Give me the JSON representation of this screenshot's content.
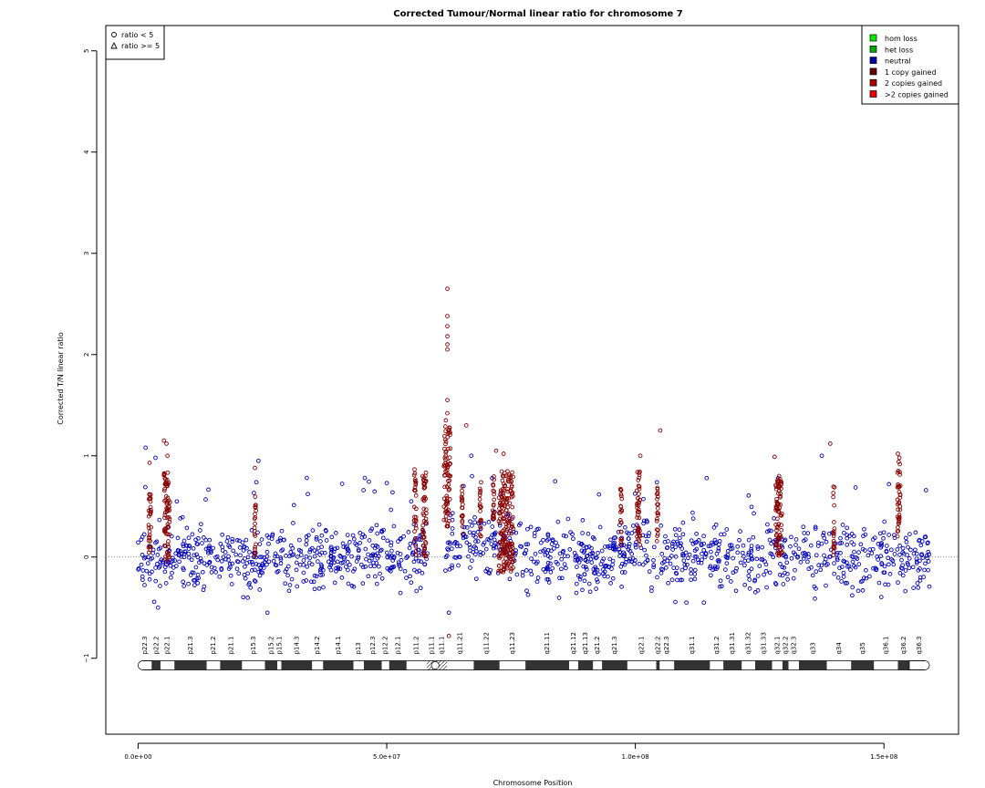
{
  "chart_data": {
    "type": "scatter",
    "title": "Corrected Tumour/Normal linear ratio for chromosome  7",
    "xlabel": "Chromosome Position",
    "ylabel": "Corrected T/N linear ratio",
    "xlim": [
      -6500000,
      165000000
    ],
    "ylim": [
      -1.75,
      5.25
    ],
    "x_ticks": [
      {
        "value": 0,
        "label": "0.0e+00"
      },
      {
        "value": 50000000,
        "label": "5.0e+07"
      },
      {
        "value": 100000000,
        "label": "1.0e+08"
      },
      {
        "value": 150000000,
        "label": "1.5e+08"
      }
    ],
    "y_ticks": [
      {
        "value": -1,
        "label": "−1"
      },
      {
        "value": 0,
        "label": "0"
      },
      {
        "value": 1,
        "label": "1"
      },
      {
        "value": 2,
        "label": "2"
      },
      {
        "value": 3,
        "label": "3"
      },
      {
        "value": 4,
        "label": "4"
      },
      {
        "value": 5,
        "label": "5"
      }
    ],
    "reference_line_y": 0,
    "shape_legend": {
      "placement": "top-left",
      "items": [
        {
          "symbol": "circle",
          "label": "ratio < 5"
        },
        {
          "symbol": "triangle",
          "label": "ratio >= 5"
        }
      ]
    },
    "state_legend": {
      "placement": "top-right",
      "items": [
        {
          "label": "hom loss",
          "color": "#00ee00"
        },
        {
          "label": "het loss",
          "color": "#00aa00"
        },
        {
          "label": "neutral",
          "color": "#0000aa"
        },
        {
          "label": "1 copy gained",
          "color": "#660000"
        },
        {
          "label": "2 copies gained",
          "color": "#aa0000"
        },
        {
          "label": ">2 copies gained",
          "color": "#ee0000"
        }
      ]
    },
    "series": [
      {
        "name": "neutral",
        "color": "#0000bb",
        "baseline_band": {
          "center": 0.0,
          "low": -0.45,
          "high": 0.55
        },
        "elevated_regions": [
          [
            62000000,
            77000000
          ],
          [
            98000000,
            103000000
          ]
        ],
        "points_per_mb": 9
      },
      {
        "name": "1 copy gained",
        "color": "#880000",
        "segments": [
          {
            "x": [
              2100000,
              2600000
            ],
            "y": [
              0.0,
              0.65
            ]
          },
          {
            "x": [
              5200000,
              6400000
            ],
            "y": [
              -0.05,
              0.85
            ]
          },
          {
            "x": [
              23400000,
              23700000
            ],
            "y": [
              0.0,
              0.6
            ]
          },
          {
            "x": [
              55500000,
              56000000
            ],
            "y": [
              0.0,
              0.9
            ]
          },
          {
            "x": [
              57200000,
              58000000
            ],
            "y": [
              0.0,
              0.85
            ]
          },
          {
            "x": [
              61500000,
              62800000
            ],
            "y": [
              0.3,
              1.3
            ]
          },
          {
            "x": [
              65000000,
              65300000
            ],
            "y": [
              0.2,
              0.7
            ]
          },
          {
            "x": [
              68700000,
              69000000
            ],
            "y": [
              0.2,
              0.75
            ]
          },
          {
            "x": [
              71300000,
              71600000
            ],
            "y": [
              0.25,
              0.8
            ]
          },
          {
            "x": [
              72500000,
              75500000
            ],
            "y": [
              -0.15,
              0.85
            ]
          },
          {
            "x": [
              97000000,
              97300000
            ],
            "y": [
              0.1,
              0.7
            ]
          },
          {
            "x": [
              100300000,
              101000000
            ],
            "y": [
              0.1,
              0.85
            ]
          },
          {
            "x": [
              104300000,
              104600000
            ],
            "y": [
              0.15,
              0.7
            ]
          },
          {
            "x": [
              128200000,
              129500000
            ],
            "y": [
              0.0,
              0.8
            ]
          },
          {
            "x": [
              139800000,
              140100000
            ],
            "y": [
              0.0,
              0.75
            ]
          },
          {
            "x": [
              152700000,
              153300000
            ],
            "y": [
              0.2,
              0.95
            ]
          }
        ],
        "outliers": [
          {
            "x": 62200000,
            "y": 2.65
          },
          {
            "x": 62200000,
            "y": 2.38
          },
          {
            "x": 62200000,
            "y": 2.28
          },
          {
            "x": 62200000,
            "y": 2.18
          },
          {
            "x": 62200000,
            "y": 2.1
          },
          {
            "x": 62200000,
            "y": 2.05
          },
          {
            "x": 62200000,
            "y": 1.55
          },
          {
            "x": 62200000,
            "y": 1.42
          },
          {
            "x": 61900000,
            "y": 1.35
          },
          {
            "x": 62400000,
            "y": 1.25
          },
          {
            "x": 5200000,
            "y": 1.15
          },
          {
            "x": 5700000,
            "y": 1.12
          },
          {
            "x": 5900000,
            "y": 1.0
          },
          {
            "x": 105000000,
            "y": 1.25
          },
          {
            "x": 66000000,
            "y": 1.3
          },
          {
            "x": 72000000,
            "y": 1.05
          },
          {
            "x": 73500000,
            "y": 1.02
          },
          {
            "x": 139200000,
            "y": 1.12
          },
          {
            "x": 128000000,
            "y": 0.99
          },
          {
            "x": 152800000,
            "y": 1.02
          },
          {
            "x": 153100000,
            "y": 0.98
          },
          {
            "x": 2300000,
            "y": 0.93
          },
          {
            "x": 23500000,
            "y": 0.88
          },
          {
            "x": 101000000,
            "y": 1.0
          },
          {
            "x": 62500000,
            "y": -0.78
          }
        ]
      }
    ],
    "neutral_outliers": [
      {
        "x": 1500000,
        "y": 1.08
      },
      {
        "x": 67000000,
        "y": 1.0
      },
      {
        "x": 137500000,
        "y": 1.0
      },
      {
        "x": 24200000,
        "y": 0.95
      },
      {
        "x": 3500000,
        "y": 0.98
      },
      {
        "x": 62500000,
        "y": -0.55
      },
      {
        "x": 26000000,
        "y": -0.55
      },
      {
        "x": 4000000,
        "y": -0.5
      }
    ],
    "ideogram": {
      "y": -1.07,
      "start": 0,
      "end": 159138663,
      "centromere": [
        58000000,
        61500000
      ],
      "bands": [
        {
          "name": "p22.3",
          "start": 0,
          "end": 2800000,
          "stain": "gneg"
        },
        {
          "name": "p22.2",
          "start": 2800000,
          "end": 4500000,
          "stain": "gpos25"
        },
        {
          "name": "p22.1",
          "start": 4500000,
          "end": 7300000,
          "stain": "gneg"
        },
        {
          "name": "p21.3",
          "start": 7300000,
          "end": 13800000,
          "stain": "gpos100"
        },
        {
          "name": "p21.2",
          "start": 13800000,
          "end": 16500000,
          "stain": "gneg"
        },
        {
          "name": "p21.1",
          "start": 16500000,
          "end": 20900000,
          "stain": "gpos100"
        },
        {
          "name": "p15.3",
          "start": 20900000,
          "end": 25500000,
          "stain": "gneg"
        },
        {
          "name": "p15.2",
          "start": 25500000,
          "end": 28000000,
          "stain": "gpos50"
        },
        {
          "name": "p15.1",
          "start": 28000000,
          "end": 28800000,
          "stain": "gneg"
        },
        {
          "name": "p14.3",
          "start": 28800000,
          "end": 35000000,
          "stain": "gpos75"
        },
        {
          "name": "p14.2",
          "start": 35000000,
          "end": 37200000,
          "stain": "gneg"
        },
        {
          "name": "p14.1",
          "start": 37200000,
          "end": 43300000,
          "stain": "gpos75"
        },
        {
          "name": "p13",
          "start": 43300000,
          "end": 45400000,
          "stain": "gneg"
        },
        {
          "name": "p12.3",
          "start": 45400000,
          "end": 49000000,
          "stain": "gpos75"
        },
        {
          "name": "p12.2",
          "start": 49000000,
          "end": 50500000,
          "stain": "gneg"
        },
        {
          "name": "p12.1",
          "start": 50500000,
          "end": 54000000,
          "stain": "gpos75"
        },
        {
          "name": "p11.2",
          "start": 54000000,
          "end": 58000000,
          "stain": "gneg"
        },
        {
          "name": "p11.1",
          "start": 58000000,
          "end": 60100000,
          "stain": "acen"
        },
        {
          "name": "q11.1",
          "start": 60100000,
          "end": 62100000,
          "stain": "acen"
        },
        {
          "name": "q11.21",
          "start": 62100000,
          "end": 67500000,
          "stain": "gneg"
        },
        {
          "name": "q11.22",
          "start": 67500000,
          "end": 72700000,
          "stain": "gpos50"
        },
        {
          "name": "q11.23",
          "start": 72700000,
          "end": 77900000,
          "stain": "gneg"
        },
        {
          "name": "q21.11",
          "start": 77900000,
          "end": 86700000,
          "stain": "gpos100"
        },
        {
          "name": "q21.12",
          "start": 86700000,
          "end": 88500000,
          "stain": "gneg"
        },
        {
          "name": "q21.13",
          "start": 88500000,
          "end": 91500000,
          "stain": "gpos75"
        },
        {
          "name": "q21.2",
          "start": 91500000,
          "end": 93300000,
          "stain": "gneg"
        },
        {
          "name": "q21.3",
          "start": 93300000,
          "end": 98400000,
          "stain": "gpos75"
        },
        {
          "name": "q22.1",
          "start": 98400000,
          "end": 104200000,
          "stain": "gneg"
        },
        {
          "name": "q22.2",
          "start": 104200000,
          "end": 104900000,
          "stain": "gpos50"
        },
        {
          "name": "q22.3",
          "start": 104900000,
          "end": 107800000,
          "stain": "gneg"
        },
        {
          "name": "q31.1",
          "start": 107800000,
          "end": 115000000,
          "stain": "gpos75"
        },
        {
          "name": "q31.2",
          "start": 115000000,
          "end": 117700000,
          "stain": "gneg"
        },
        {
          "name": "q31.31",
          "start": 117700000,
          "end": 121400000,
          "stain": "gpos75"
        },
        {
          "name": "q31.32",
          "start": 121400000,
          "end": 124100000,
          "stain": "gneg"
        },
        {
          "name": "q31.33",
          "start": 124100000,
          "end": 127500000,
          "stain": "gpos75"
        },
        {
          "name": "q32.1",
          "start": 127500000,
          "end": 129600000,
          "stain": "gneg"
        },
        {
          "name": "q32.2",
          "start": 129600000,
          "end": 130800000,
          "stain": "gpos25"
        },
        {
          "name": "q32.3",
          "start": 130800000,
          "end": 132900000,
          "stain": "gneg"
        },
        {
          "name": "q33",
          "start": 132900000,
          "end": 138500000,
          "stain": "gpos50"
        },
        {
          "name": "q34",
          "start": 138500000,
          "end": 143400000,
          "stain": "gneg"
        },
        {
          "name": "q35",
          "start": 143400000,
          "end": 148000000,
          "stain": "gpos75"
        },
        {
          "name": "q36.1",
          "start": 148000000,
          "end": 152800000,
          "stain": "gneg"
        },
        {
          "name": "q36.2",
          "start": 152800000,
          "end": 155100000,
          "stain": "gpos100"
        },
        {
          "name": "q36.3",
          "start": 155100000,
          "end": 159138663,
          "stain": "gneg"
        }
      ]
    }
  }
}
